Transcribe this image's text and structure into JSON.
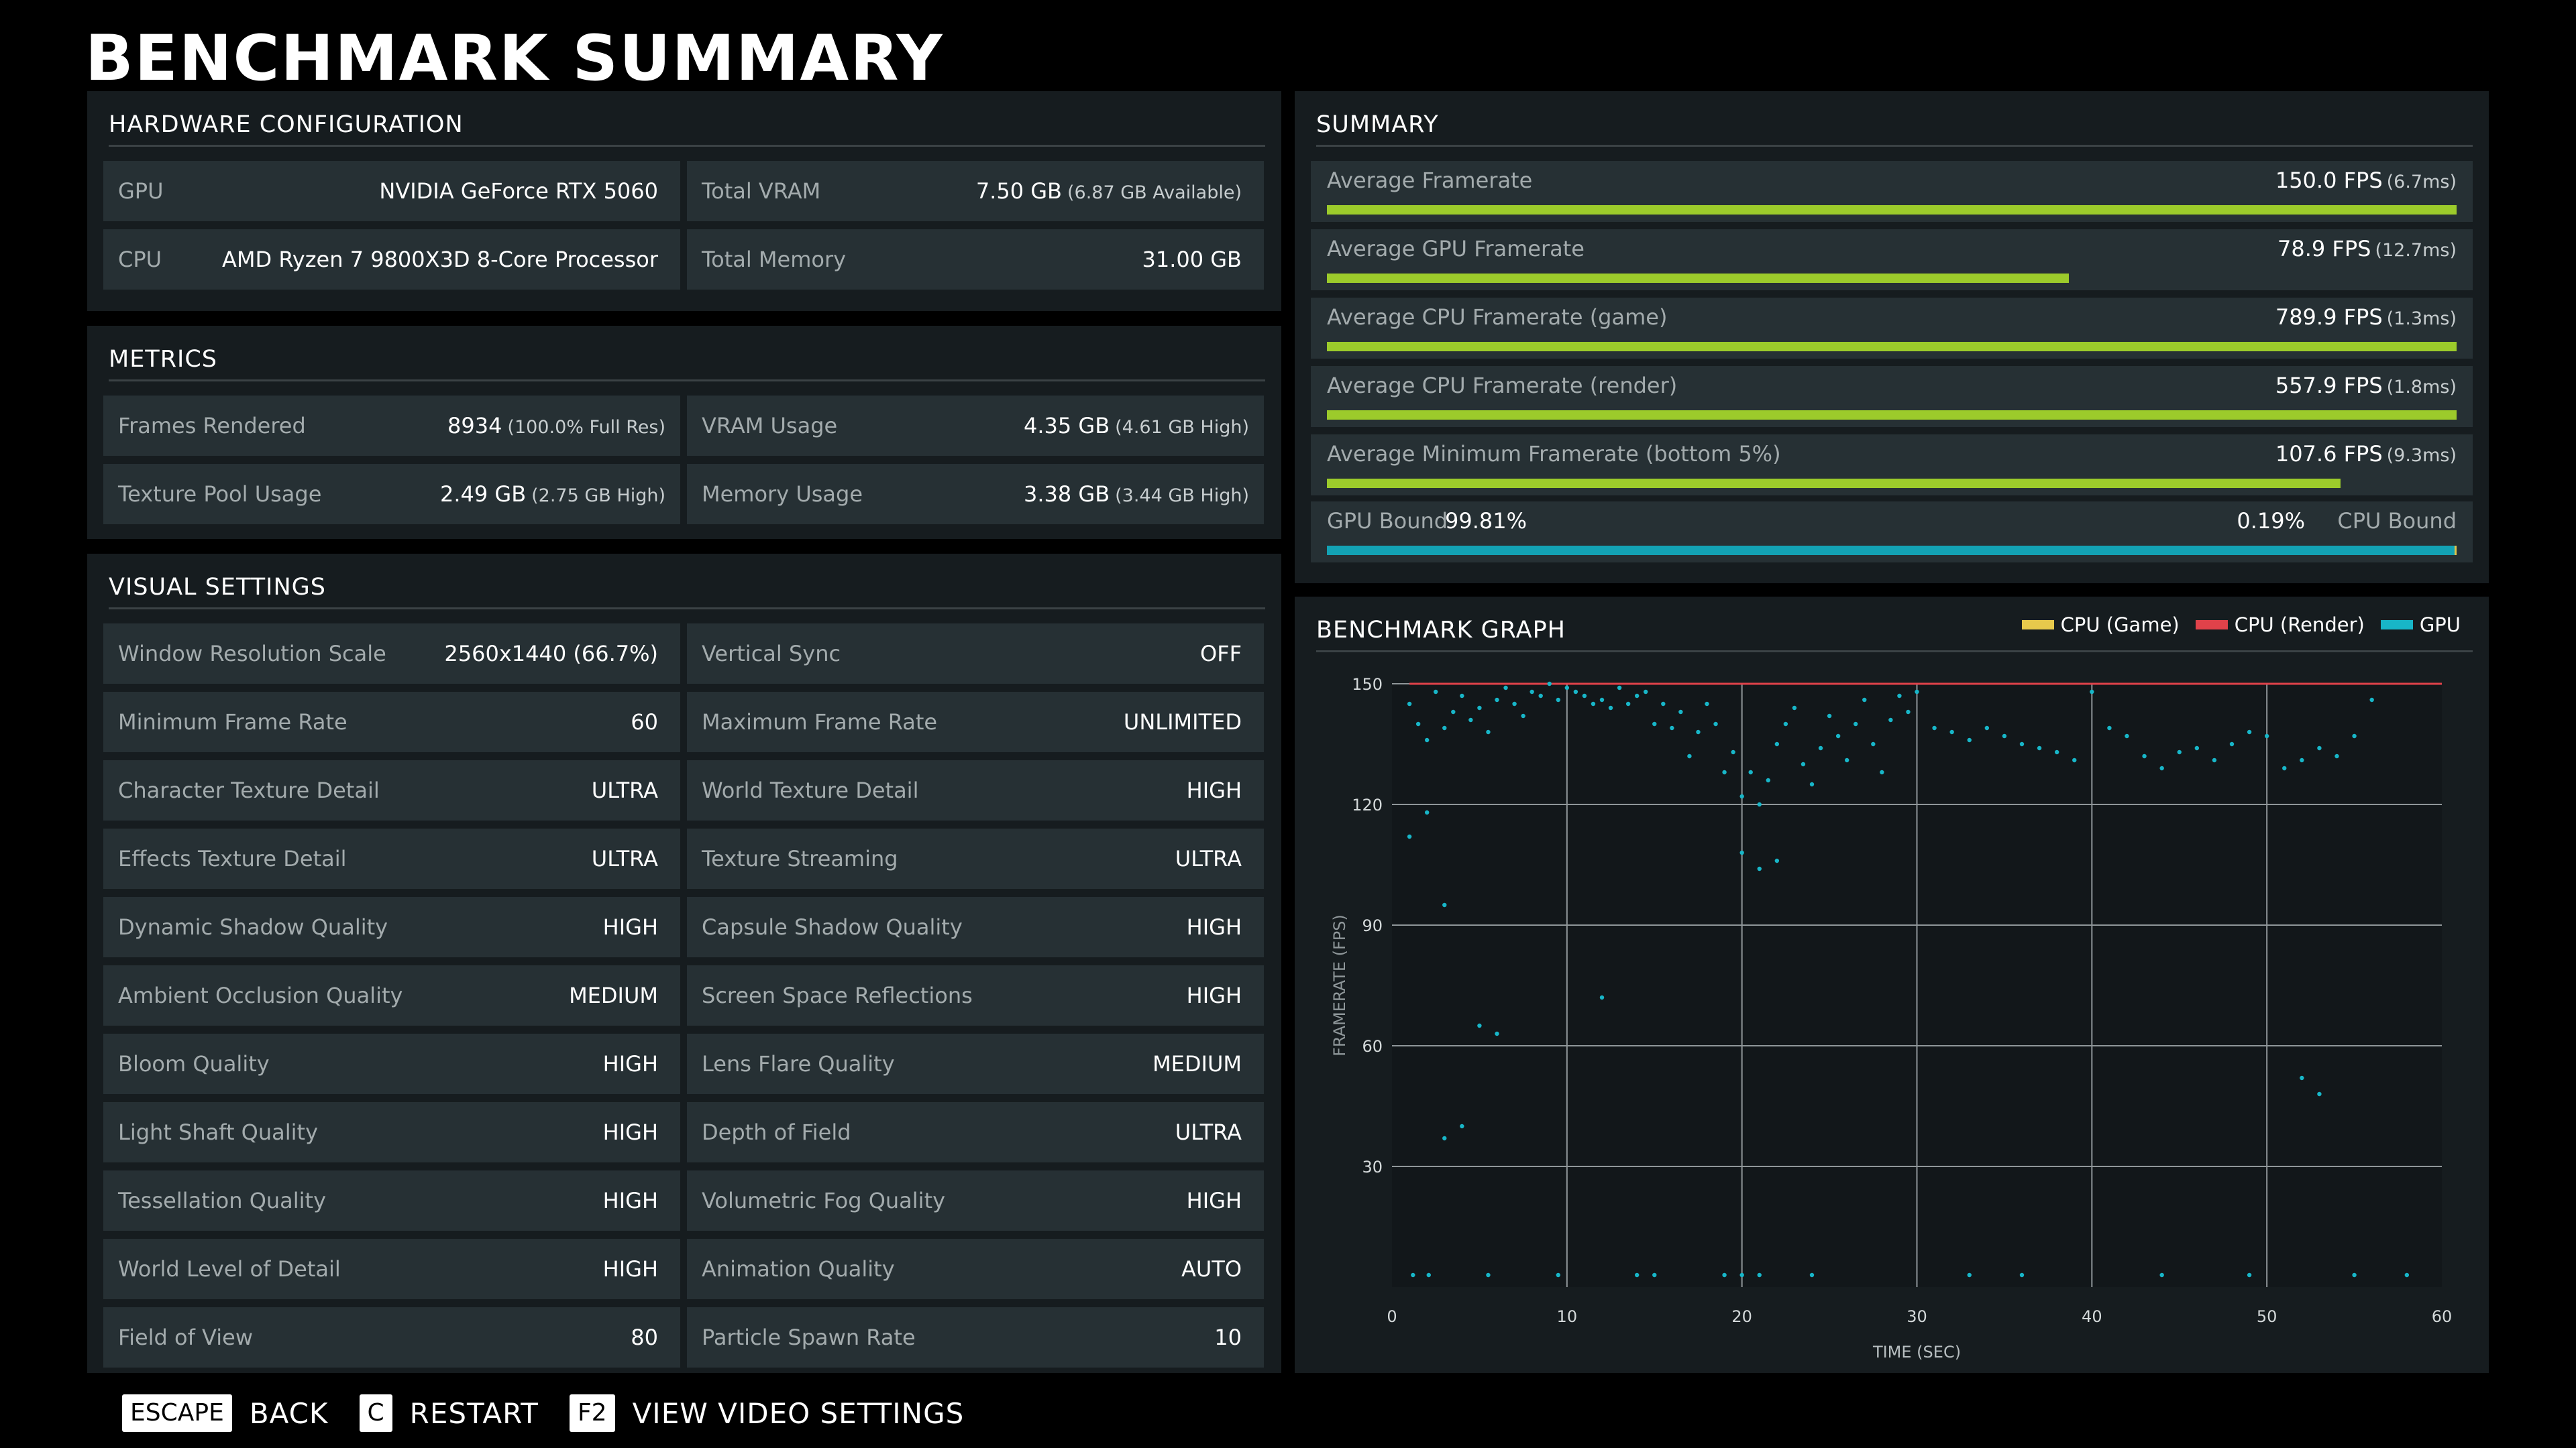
{
  "title": "BENCHMARK SUMMARY",
  "hardware": {
    "header": "HARDWARE CONFIGURATION",
    "gpu_label": "GPU",
    "gpu_value": "NVIDIA GeForce RTX 5060",
    "vram_label": "Total VRAM",
    "vram_value": "7.50 GB",
    "vram_sub": "(6.87 GB Available)",
    "cpu_label": "CPU",
    "cpu_value": "AMD Ryzen 7 9800X3D 8-Core Processor",
    "memory_label": "Total Memory",
    "memory_value": "31.00 GB"
  },
  "metrics": {
    "header": "METRICS",
    "frames_label": "Frames Rendered",
    "frames_value": "8934",
    "frames_sub": "(100.0% Full Res)",
    "vram_usage_label": "VRAM Usage",
    "vram_usage_value": "4.35 GB",
    "vram_usage_sub": "(4.61 GB High)",
    "texture_pool_label": "Texture Pool Usage",
    "texture_pool_value": "2.49 GB",
    "texture_pool_sub": "(2.75 GB High)",
    "memory_usage_label": "Memory Usage",
    "memory_usage_value": "3.38 GB",
    "memory_usage_sub": "(3.44 GB High)"
  },
  "visual": {
    "header": "VISUAL SETTINGS",
    "rows": [
      [
        {
          "label": "Window Resolution Scale",
          "value": "2560x1440 (66.7%)"
        },
        {
          "label": "Vertical Sync",
          "value": "OFF"
        }
      ],
      [
        {
          "label": "Minimum Frame Rate",
          "value": "60"
        },
        {
          "label": "Maximum Frame Rate",
          "value": "UNLIMITED"
        }
      ],
      [
        {
          "label": "Character Texture Detail",
          "value": "ULTRA"
        },
        {
          "label": "World Texture Detail",
          "value": "HIGH"
        }
      ],
      [
        {
          "label": "Effects Texture Detail",
          "value": "ULTRA"
        },
        {
          "label": "Texture Streaming",
          "value": "ULTRA"
        }
      ],
      [
        {
          "label": "Dynamic Shadow Quality",
          "value": "HIGH"
        },
        {
          "label": "Capsule Shadow Quality",
          "value": "HIGH"
        }
      ],
      [
        {
          "label": "Ambient Occlusion Quality",
          "value": "MEDIUM"
        },
        {
          "label": "Screen Space Reflections",
          "value": "HIGH"
        }
      ],
      [
        {
          "label": "Bloom Quality",
          "value": "HIGH"
        },
        {
          "label": "Lens Flare Quality",
          "value": "MEDIUM"
        }
      ],
      [
        {
          "label": "Light Shaft Quality",
          "value": "HIGH"
        },
        {
          "label": "Depth of Field",
          "value": "ULTRA"
        }
      ],
      [
        {
          "label": "Tessellation Quality",
          "value": "HIGH"
        },
        {
          "label": "Volumetric Fog Quality",
          "value": "HIGH"
        }
      ],
      [
        {
          "label": "World Level of Detail",
          "value": "HIGH"
        },
        {
          "label": "Animation Quality",
          "value": "AUTO"
        }
      ],
      [
        {
          "label": "Field of View",
          "value": "80"
        },
        {
          "label": "Particle Spawn Rate",
          "value": "10"
        }
      ]
    ]
  },
  "summary": {
    "header": "SUMMARY",
    "bar_color": "#9ccb2b",
    "rows": [
      {
        "label": "Average Framerate",
        "value": "150.0 FPS",
        "sub": "(6.7ms)",
        "fraction": 1.0
      },
      {
        "label": "Average GPU Framerate",
        "value": "78.9 FPS",
        "sub": "(12.7ms)",
        "fraction": 0.657
      },
      {
        "label": "Average CPU Framerate (game)",
        "value": "789.9 FPS",
        "sub": "(1.3ms)",
        "fraction": 1.0
      },
      {
        "label": "Average CPU Framerate (render)",
        "value": "557.9 FPS",
        "sub": "(1.8ms)",
        "fraction": 1.0
      },
      {
        "label": "Average Minimum Framerate (bottom 5%)",
        "value": "107.6 FPS",
        "sub": "(9.3ms)",
        "fraction": 0.897
      }
    ],
    "bound": {
      "gpu_label": "GPU Bound",
      "gpu_pct": "99.81%",
      "cpu_pct": "0.19%",
      "cpu_label": "CPU Bound",
      "gpu_fraction": 0.9981,
      "gpu_color": "#13a2b4",
      "cpu_color": "#e0c34a"
    }
  },
  "graph": {
    "header": "BENCHMARK GRAPH",
    "legend": [
      {
        "name": "CPU (Game)",
        "color": "#e7c94c"
      },
      {
        "name": "CPU (Render)",
        "color": "#e0424a"
      },
      {
        "name": "GPU",
        "color": "#18b6c8"
      }
    ]
  },
  "chart_data": {
    "type": "scatter",
    "title": "",
    "xlabel": "TIME (SEC)",
    "ylabel": "FRAMERATE (FPS)",
    "xlim": [
      0,
      60
    ],
    "ylim": [
      0,
      150
    ],
    "xticks": [
      0,
      10,
      20,
      30,
      40,
      50,
      60
    ],
    "yticks": [
      30,
      60,
      90,
      120,
      150
    ],
    "grid": true,
    "legend_position": "top-right",
    "series": [
      {
        "name": "CPU (Render)",
        "type": "line",
        "color": "#e0424a",
        "x": [
          1,
          60
        ],
        "y": [
          150,
          150
        ]
      },
      {
        "name": "GPU",
        "type": "scatter",
        "color": "#18b6c8",
        "x": [
          1,
          1.5,
          2,
          2.5,
          3,
          3.5,
          4,
          4.5,
          5,
          5.5,
          6,
          6.5,
          7,
          7.5,
          8,
          8.5,
          9,
          9.5,
          10,
          10.5,
          11,
          11.5,
          12,
          12.5,
          13,
          13.5,
          14,
          14.5,
          15,
          15.5,
          16,
          16.5,
          17,
          17.5,
          18,
          18.5,
          19,
          19.5,
          20,
          20.5,
          21,
          21.5,
          22,
          22.5,
          23,
          23.5,
          24,
          24.5,
          25,
          25.5,
          26,
          26.5,
          27,
          27.5,
          28,
          28.5,
          29,
          29.5,
          30,
          31,
          32,
          33,
          34,
          35,
          36,
          37,
          38,
          39,
          40,
          41,
          42,
          43,
          44,
          45,
          46,
          47,
          48,
          49,
          50,
          51,
          52,
          53,
          54,
          55,
          56,
          1,
          2,
          3,
          5,
          6,
          20,
          21,
          22,
          12,
          3,
          4,
          52,
          53,
          14,
          19,
          20,
          21,
          55,
          58,
          1.2,
          2.1,
          5.5,
          9.5,
          15,
          24,
          33,
          36,
          44,
          49
        ],
        "y": [
          145,
          140,
          136,
          148,
          139,
          143,
          147,
          141,
          144,
          138,
          146,
          149,
          145,
          142,
          148,
          147,
          150,
          146,
          149,
          148,
          147,
          145,
          146,
          144,
          149,
          145,
          147,
          148,
          140,
          145,
          139,
          143,
          132,
          138,
          145,
          140,
          128,
          133,
          122,
          128,
          120,
          126,
          135,
          140,
          144,
          130,
          125,
          134,
          142,
          137,
          131,
          140,
          146,
          135,
          128,
          141,
          147,
          143,
          148,
          139,
          138,
          136,
          139,
          137,
          135,
          134,
          133,
          131,
          148,
          139,
          137,
          132,
          129,
          133,
          134,
          131,
          135,
          138,
          137,
          129,
          131,
          134,
          132,
          137,
          146,
          112,
          118,
          95,
          65,
          63,
          108,
          104,
          106,
          72,
          37,
          40,
          52,
          48,
          3,
          3,
          3,
          3,
          3,
          3,
          3,
          3,
          3,
          3,
          3,
          3,
          3,
          3,
          3,
          3
        ]
      }
    ]
  },
  "footer": {
    "items": [
      {
        "key": "ESCAPE",
        "action": "BACK"
      },
      {
        "key": "C",
        "action": "RESTART"
      },
      {
        "key": "F2",
        "action": "VIEW VIDEO SETTINGS"
      }
    ]
  }
}
